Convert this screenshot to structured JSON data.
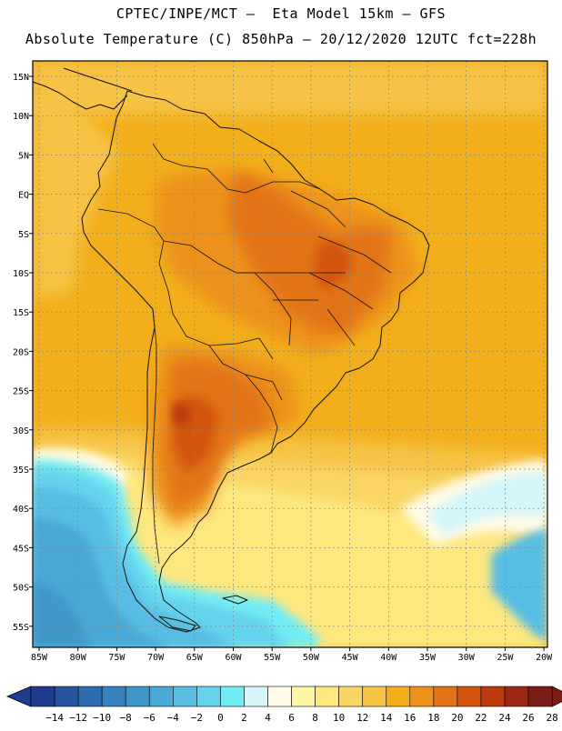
{
  "header": {
    "line1": "CPTEC/INPE/MCT –  Eta Model 15km – GFS",
    "line2": "Absolute Temperature (C) 850hPa – 20/12/2020 12UTC fct=228h"
  },
  "map": {
    "lat_labels": [
      "15N",
      "10N",
      "5N",
      "EQ",
      "5S",
      "10S",
      "15S",
      "20S",
      "25S",
      "30S",
      "35S",
      "40S",
      "45S",
      "50S",
      "55S"
    ],
    "lon_labels": [
      "85W",
      "80W",
      "75W",
      "70W",
      "65W",
      "60W",
      "55W",
      "50W",
      "45W",
      "40W",
      "35W",
      "30W",
      "25W",
      "20W"
    ]
  },
  "colorbar": {
    "labels": [
      "-14",
      "-12",
      "-10",
      "-8",
      "-6",
      "-4",
      "-2",
      "0",
      "2",
      "4",
      "6",
      "8",
      "10",
      "12",
      "14",
      "16",
      "18",
      "20",
      "22",
      "24",
      "26",
      "28"
    ],
    "colors": [
      "#1f3d8c",
      "#25559e",
      "#2d6cad",
      "#3682bd",
      "#3f97c9",
      "#4aa9d6",
      "#59bde3",
      "#66d3ec",
      "#72ecf4",
      "#d4f6fb",
      "#fffbe6",
      "#fff6a5",
      "#fde880",
      "#fad666",
      "#f6c344",
      "#f2ae1b",
      "#ec921b",
      "#e27314",
      "#d4550e",
      "#bd3a0e",
      "#9d2614",
      "#7b1d18"
    ]
  }
}
